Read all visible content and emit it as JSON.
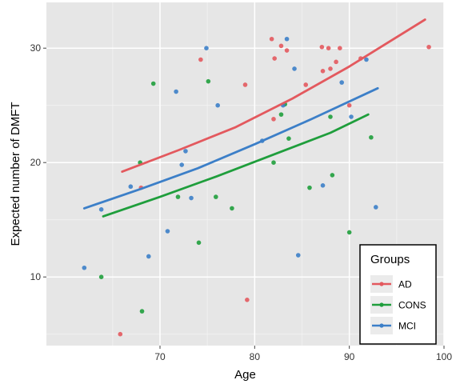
{
  "chart_data": {
    "type": "scatter",
    "xlabel": "Age",
    "ylabel": "Expected number of DMFT",
    "xlim": [
      58,
      100
    ],
    "ylim": [
      4,
      34
    ],
    "xticks": [
      70,
      80,
      90,
      100
    ],
    "yticks": [
      10,
      20,
      30
    ],
    "grid": true,
    "legend": {
      "title": "Groups",
      "position": "bottom-right",
      "entries": [
        "AD",
        "CONS",
        "MCI"
      ]
    },
    "series": [
      {
        "name": "AD",
        "color": "#e3595e",
        "line": [
          [
            66,
            19.2
          ],
          [
            72,
            21.1
          ],
          [
            78,
            23.1
          ],
          [
            84,
            25.6
          ],
          [
            90,
            28.4
          ],
          [
            98,
            32.5
          ]
        ],
        "points": [
          [
            65.8,
            5
          ],
          [
            68,
            17.8
          ],
          [
            74.3,
            29
          ],
          [
            79.2,
            8
          ],
          [
            79,
            26.8
          ],
          [
            81.8,
            30.8
          ],
          [
            82.1,
            29.1
          ],
          [
            82.8,
            30.2
          ],
          [
            83.4,
            29.8
          ],
          [
            82,
            23.8
          ],
          [
            85.4,
            26.8
          ],
          [
            87.1,
            30.1
          ],
          [
            87.8,
            30
          ],
          [
            87.2,
            28
          ],
          [
            88,
            28.2
          ],
          [
            88.6,
            28.8
          ],
          [
            89,
            30
          ],
          [
            90,
            25
          ],
          [
            91.2,
            29.1
          ],
          [
            98.4,
            30.1
          ]
        ]
      },
      {
        "name": "CONS",
        "color": "#1f9e3c",
        "line": [
          [
            64,
            15.3
          ],
          [
            70,
            17
          ],
          [
            76,
            18.8
          ],
          [
            82,
            20.7
          ],
          [
            88,
            22.6
          ],
          [
            92,
            24.2
          ]
        ],
        "points": [
          [
            63.8,
            10
          ],
          [
            67.9,
            20
          ],
          [
            68.1,
            7
          ],
          [
            69.3,
            26.9
          ],
          [
            71.9,
            17
          ],
          [
            74.1,
            13
          ],
          [
            75.1,
            27.1
          ],
          [
            75.9,
            17
          ],
          [
            77.6,
            16
          ],
          [
            82,
            20
          ],
          [
            82.8,
            24.2
          ],
          [
            83.2,
            25.1
          ],
          [
            83.6,
            22.1
          ],
          [
            85.8,
            17.8
          ],
          [
            88,
            24
          ],
          [
            88.2,
            18.9
          ],
          [
            90,
            13.9
          ],
          [
            92.3,
            22.2
          ]
        ]
      },
      {
        "name": "MCI",
        "color": "#3c7fc8",
        "line": [
          [
            62,
            16
          ],
          [
            68,
            17.7
          ],
          [
            74,
            19.5
          ],
          [
            80,
            21.6
          ],
          [
            86,
            23.8
          ],
          [
            93,
            26.5
          ]
        ],
        "points": [
          [
            62,
            10.8
          ],
          [
            63.8,
            15.9
          ],
          [
            66.9,
            17.9
          ],
          [
            68.8,
            11.8
          ],
          [
            70.8,
            14
          ],
          [
            71.7,
            26.2
          ],
          [
            72.3,
            19.8
          ],
          [
            72.7,
            21
          ],
          [
            73.3,
            16.9
          ],
          [
            74.9,
            30
          ],
          [
            76.1,
            25
          ],
          [
            80.8,
            21.9
          ],
          [
            83,
            25
          ],
          [
            83.4,
            30.8
          ],
          [
            84.2,
            28.2
          ],
          [
            84.6,
            11.9
          ],
          [
            87.2,
            18
          ],
          [
            89.2,
            27
          ],
          [
            90.2,
            24
          ],
          [
            91.8,
            29
          ],
          [
            92.8,
            16.1
          ]
        ]
      }
    ]
  }
}
